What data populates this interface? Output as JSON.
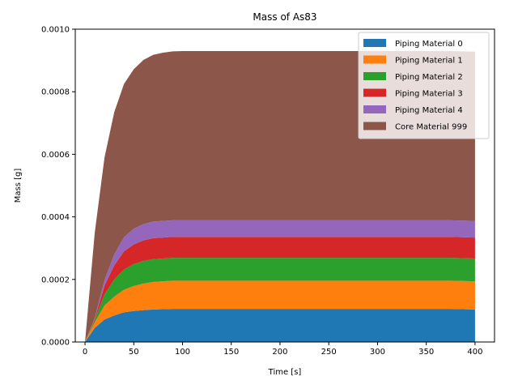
{
  "chart_data": {
    "type": "area",
    "stacked": true,
    "title": "Mass of As83",
    "xlabel": "Time [s]",
    "ylabel": "Mass [g]",
    "xlim": [
      -10,
      420
    ],
    "ylim": [
      0,
      0.001
    ],
    "x_ticks": [
      0,
      50,
      100,
      150,
      200,
      250,
      300,
      350,
      400
    ],
    "x_tick_labels": [
      "0",
      "50",
      "100",
      "150",
      "200",
      "250",
      "300",
      "350",
      "400"
    ],
    "y_ticks": [
      0,
      0.0002,
      0.0004,
      0.0006,
      0.0008,
      0.001
    ],
    "y_tick_labels": [
      "0.0000",
      "0.0002",
      "0.0004",
      "0.0006",
      "0.0008",
      "0.0010"
    ],
    "grid": false,
    "legend_position": "top-right",
    "x": [
      0,
      10,
      20,
      30,
      40,
      50,
      60,
      70,
      80,
      90,
      100,
      125,
      150,
      175,
      200,
      225,
      250,
      275,
      300,
      325,
      350,
      375,
      400
    ],
    "series": [
      {
        "name": "Piping Material 0",
        "color": "#1f77b4",
        "values": [
          0,
          4.5e-05,
          7.2e-05,
          8.5e-05,
          9.5e-05,
          9.9e-05,
          0.000102,
          0.000104,
          0.000105,
          0.000106,
          0.000106,
          0.000106,
          0.000106,
          0.000106,
          0.000106,
          0.000106,
          0.000106,
          0.000106,
          0.000106,
          0.000106,
          0.000106,
          0.000106,
          0.000104
        ]
      },
      {
        "name": "Piping Material 1",
        "color": "#ff7f0e",
        "values": [
          0,
          1.8e-05,
          4.5e-05,
          6e-05,
          7.2e-05,
          8e-05,
          8.5e-05,
          8.8e-05,
          8.9e-05,
          9e-05,
          9e-05,
          9e-05,
          9e-05,
          9e-05,
          9e-05,
          9e-05,
          9e-05,
          9e-05,
          9e-05,
          9e-05,
          9e-05,
          9e-05,
          9e-05
        ]
      },
      {
        "name": "Piping Material 2",
        "color": "#2ca02c",
        "values": [
          0,
          8e-06,
          3.5e-05,
          5.5e-05,
          6.5e-05,
          7e-05,
          7.2e-05,
          7.3e-05,
          7.3e-05,
          7.3e-05,
          7.3e-05,
          7.3e-05,
          7.3e-05,
          7.3e-05,
          7.3e-05,
          7.3e-05,
          7.3e-05,
          7.3e-05,
          7.3e-05,
          7.3e-05,
          7.3e-05,
          7.3e-05,
          7.3e-05
        ]
      },
      {
        "name": "Piping Material 3",
        "color": "#d62728",
        "values": [
          0,
          4e-06,
          2.8e-05,
          4.5e-05,
          5.8e-05,
          6.3e-05,
          6.6e-05,
          6.7e-05,
          6.7e-05,
          6.7e-05,
          6.7e-05,
          6.7e-05,
          6.7e-05,
          6.7e-05,
          6.7e-05,
          6.7e-05,
          6.7e-05,
          6.7e-05,
          6.7e-05,
          6.7e-05,
          6.7e-05,
          6.7e-05,
          6.7e-05
        ]
      },
      {
        "name": "Piping Material 4",
        "color": "#9467bd",
        "values": [
          0,
          2e-06,
          1.8e-05,
          3.5e-05,
          4.5e-05,
          5e-05,
          5.2e-05,
          5.3e-05,
          5.3e-05,
          5.3e-05,
          5.3e-05,
          5.3e-05,
          5.3e-05,
          5.3e-05,
          5.3e-05,
          5.3e-05,
          5.3e-05,
          5.3e-05,
          5.3e-05,
          5.3e-05,
          5.3e-05,
          5.3e-05,
          5.3e-05
        ]
      },
      {
        "name": "Core Material 999",
        "color": "#8c564b",
        "values": [
          0,
          0.000273,
          0.000392,
          0.000455,
          0.00049,
          0.00051,
          0.000525,
          0.000533,
          0.000538,
          0.00054,
          0.000541,
          0.000541,
          0.000541,
          0.000541,
          0.000541,
          0.000541,
          0.000541,
          0.000541,
          0.000541,
          0.000541,
          0.000541,
          0.000541,
          0.000541
        ]
      }
    ]
  }
}
